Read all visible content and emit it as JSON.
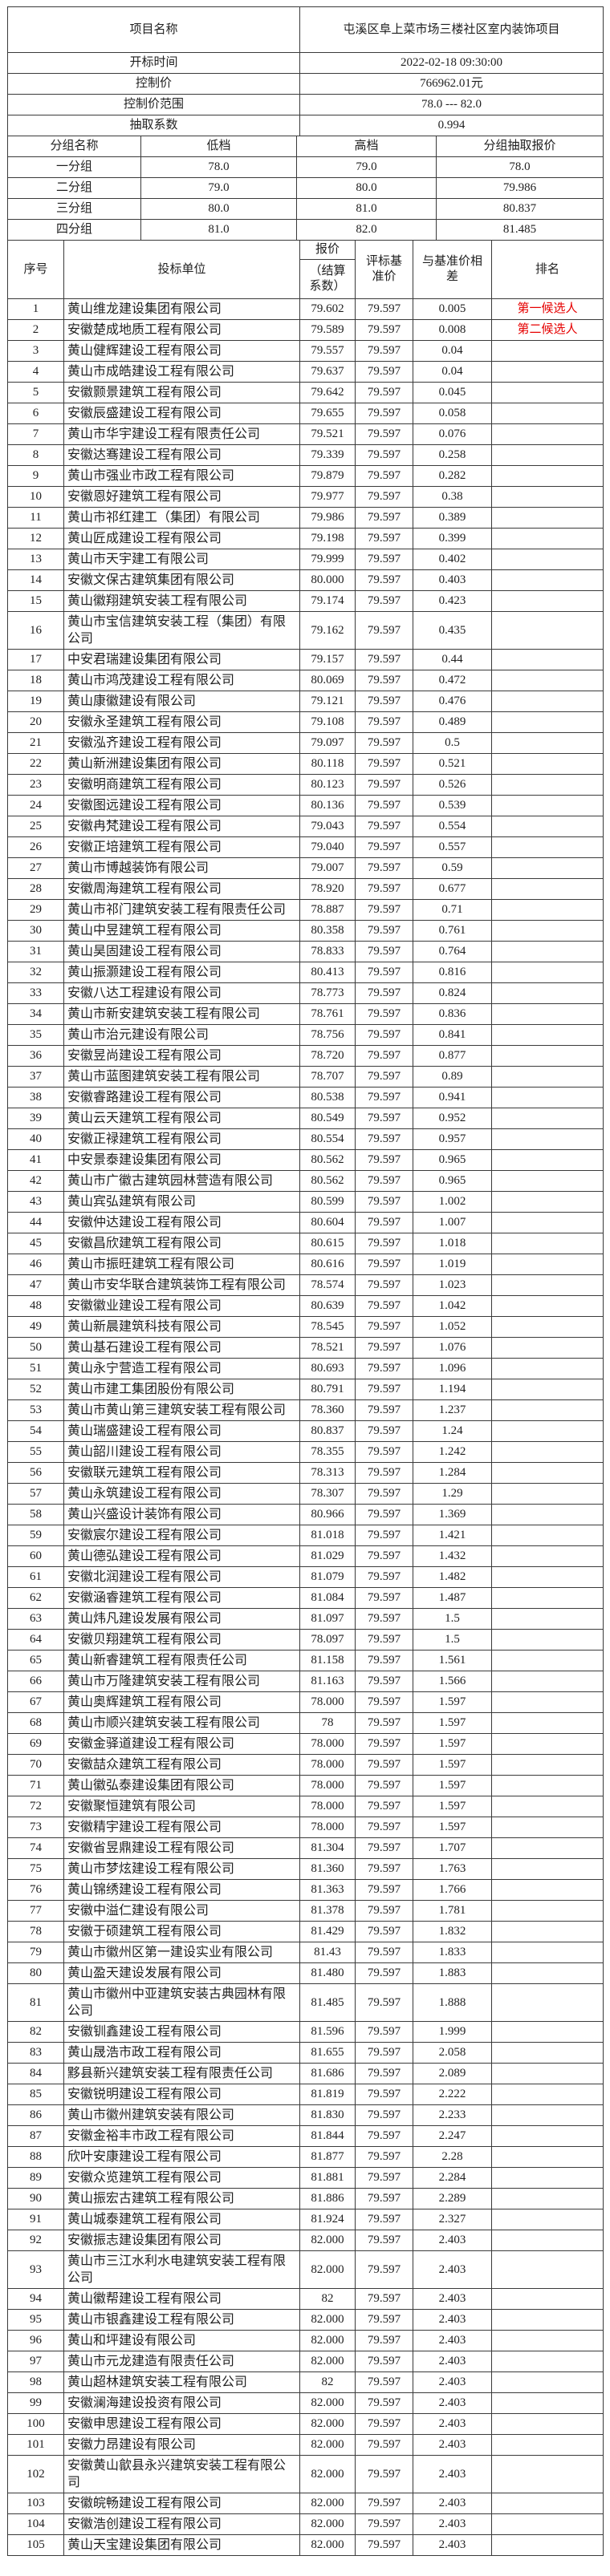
{
  "colors": {
    "background": "#ffffff",
    "border": "#3a3a3a",
    "text": "#1f1f1f",
    "candidate_red": "#e60000"
  },
  "info": {
    "rows": [
      {
        "label": "项目名称",
        "value": "屯溪区阜上菜市场三楼社区室内装饰项目"
      },
      {
        "label": "开标时间",
        "value": "2022-02-18 09:30:00"
      },
      {
        "label": "控制价",
        "value": "766962.01元"
      },
      {
        "label": "控制价范围",
        "value": "78.0 --- 82.0"
      },
      {
        "label": "抽取系数",
        "value": "0.994"
      }
    ]
  },
  "groups": {
    "headers": [
      "分组名称",
      "低档",
      "高档",
      "分组抽取报价"
    ],
    "rows": [
      [
        "一分组",
        "78.0",
        "79.0",
        "78.0"
      ],
      [
        "二分组",
        "79.0",
        "80.0",
        "79.986"
      ],
      [
        "三分组",
        "80.0",
        "81.0",
        "80.837"
      ],
      [
        "四分组",
        "81.0",
        "82.0",
        "81.485"
      ]
    ]
  },
  "bids": {
    "headers": {
      "no": "序号",
      "company": "投标单位",
      "price_line1": "报价",
      "price_line2": "（结算系数）",
      "base": "评标基准价",
      "diff": "与基准价相差",
      "rank": "排名"
    },
    "rows": [
      [
        "1",
        "黄山维龙建设集团有限公司",
        "79.602",
        "79.597",
        "0.005",
        "第一候选人"
      ],
      [
        "2",
        "安徽楚成地质工程有限公司",
        "79.589",
        "79.597",
        "0.008",
        "第二候选人"
      ],
      [
        "3",
        "黄山健辉建设工程有限公司",
        "79.557",
        "79.597",
        "0.04",
        ""
      ],
      [
        "4",
        "黄山市成皓建设工程有限公司",
        "79.637",
        "79.597",
        "0.04",
        ""
      ],
      [
        "5",
        "安徽颢景建筑工程有限公司",
        "79.642",
        "79.597",
        "0.045",
        ""
      ],
      [
        "6",
        "安徽辰盛建设工程有限公司",
        "79.655",
        "79.597",
        "0.058",
        ""
      ],
      [
        "7",
        "黄山市华宇建设工程有限责任公司",
        "79.521",
        "79.597",
        "0.076",
        ""
      ],
      [
        "8",
        "安徽达骞建设工程有限公司",
        "79.339",
        "79.597",
        "0.258",
        ""
      ],
      [
        "9",
        "黄山市强业市政工程有限公司",
        "79.879",
        "79.597",
        "0.282",
        ""
      ],
      [
        "10",
        "安徽恩好建筑工程有限公司",
        "79.977",
        "79.597",
        "0.38",
        ""
      ],
      [
        "11",
        "黄山市祁红建工（集团）有限公司",
        "79.986",
        "79.597",
        "0.389",
        ""
      ],
      [
        "12",
        "黄山匠成建设工程有限公司",
        "79.198",
        "79.597",
        "0.399",
        ""
      ],
      [
        "13",
        "黄山市天宇建工有限公司",
        "79.999",
        "79.597",
        "0.402",
        ""
      ],
      [
        "14",
        "安徽文保古建筑集团有限公司",
        "80.000",
        "79.597",
        "0.403",
        ""
      ],
      [
        "15",
        "黄山徽翔建筑安装工程有限公司",
        "79.174",
        "79.597",
        "0.423",
        ""
      ],
      [
        "16",
        "黄山市宝信建筑安装工程（集团）有限公司",
        "79.162",
        "79.597",
        "0.435",
        ""
      ],
      [
        "17",
        "中安君瑞建设集团有限公司",
        "79.157",
        "79.597",
        "0.44",
        ""
      ],
      [
        "18",
        "黄山市鸿茂建设工程有限公司",
        "80.069",
        "79.597",
        "0.472",
        ""
      ],
      [
        "19",
        "黄山康徽建设有限公司",
        "79.121",
        "79.597",
        "0.476",
        ""
      ],
      [
        "20",
        "安徽永圣建筑工程有限公司",
        "79.108",
        "79.597",
        "0.489",
        ""
      ],
      [
        "21",
        "安徽泓齐建设工程有限公司",
        "79.097",
        "79.597",
        "0.5",
        ""
      ],
      [
        "22",
        "黄山新洲建设集团有限公司",
        "80.118",
        "79.597",
        "0.521",
        ""
      ],
      [
        "23",
        "安徽明商建筑工程有限公司",
        "80.123",
        "79.597",
        "0.526",
        ""
      ],
      [
        "24",
        "安徽图远建设工程有限公司",
        "80.136",
        "79.597",
        "0.539",
        ""
      ],
      [
        "25",
        "安徽冉梵建设工程有限公司",
        "79.043",
        "79.597",
        "0.554",
        ""
      ],
      [
        "26",
        "安徽正培建筑工程有限公司",
        "79.040",
        "79.597",
        "0.557",
        ""
      ],
      [
        "27",
        "黄山市博越装饰有限公司",
        "79.007",
        "79.597",
        "0.59",
        ""
      ],
      [
        "28",
        "安徽周海建筑工程有限公司",
        "78.920",
        "79.597",
        "0.677",
        ""
      ],
      [
        "29",
        "黄山市祁门建筑安装工程有限责任公司",
        "78.887",
        "79.597",
        "0.71",
        ""
      ],
      [
        "30",
        "黄山中昱建筑工程有限公司",
        "80.358",
        "79.597",
        "0.761",
        ""
      ],
      [
        "31",
        "黄山昊固建设工程有限公司",
        "78.833",
        "79.597",
        "0.764",
        ""
      ],
      [
        "32",
        "黄山振灏建设工程有限公司",
        "80.413",
        "79.597",
        "0.816",
        ""
      ],
      [
        "33",
        "安徽八达工程建设有限公司",
        "78.773",
        "79.597",
        "0.824",
        ""
      ],
      [
        "34",
        "黄山市新安建筑安装工程有限公司",
        "78.761",
        "79.597",
        "0.836",
        ""
      ],
      [
        "35",
        "黄山市治元建设有限公司",
        "78.756",
        "79.597",
        "0.841",
        ""
      ],
      [
        "36",
        "安徽昱尚建设工程有限公司",
        "78.720",
        "79.597",
        "0.877",
        ""
      ],
      [
        "37",
        "黄山市蓝图建筑安装工程有限公司",
        "78.707",
        "79.597",
        "0.89",
        ""
      ],
      [
        "38",
        "安徽睿路建设工程有限公司",
        "80.538",
        "79.597",
        "0.941",
        ""
      ],
      [
        "39",
        "黄山云天建筑工程有限公司",
        "80.549",
        "79.597",
        "0.952",
        ""
      ],
      [
        "40",
        "安徽正禄建筑工程有限公司",
        "80.554",
        "79.597",
        "0.957",
        ""
      ],
      [
        "41",
        "中安景泰建设集团有限公司",
        "80.562",
        "79.597",
        "0.965",
        ""
      ],
      [
        "42",
        "黄山市广徽古建筑园林营造有限公司",
        "80.562",
        "79.597",
        "0.965",
        ""
      ],
      [
        "43",
        "黄山宾弘建筑有限公司",
        "80.599",
        "79.597",
        "1.002",
        ""
      ],
      [
        "44",
        "安徽仲达建设工程有限公司",
        "80.604",
        "79.597",
        "1.007",
        ""
      ],
      [
        "45",
        "安徽昌欣建筑工程有限公司",
        "80.615",
        "79.597",
        "1.018",
        ""
      ],
      [
        "46",
        "黄山市振旺建筑工程有限公司",
        "80.616",
        "79.597",
        "1.019",
        ""
      ],
      [
        "47",
        "黄山市安华联合建筑装饰工程有限公司",
        "78.574",
        "79.597",
        "1.023",
        ""
      ],
      [
        "48",
        "安徽徽业建设工程有限公司",
        "80.639",
        "79.597",
        "1.042",
        ""
      ],
      [
        "49",
        "黄山新晨建筑科技有限公司",
        "78.545",
        "79.597",
        "1.052",
        ""
      ],
      [
        "50",
        "黄山基石建设工程有限公司",
        "78.521",
        "79.597",
        "1.076",
        ""
      ],
      [
        "51",
        "黄山永宁营造工程有限公司",
        "80.693",
        "79.597",
        "1.096",
        ""
      ],
      [
        "52",
        "黄山市建工集团股份有限公司",
        "80.791",
        "79.597",
        "1.194",
        ""
      ],
      [
        "53",
        "黄山市黄山第三建筑安装工程有限公司",
        "78.360",
        "79.597",
        "1.237",
        ""
      ],
      [
        "54",
        "黄山瑞盛建设工程有限公司",
        "80.837",
        "79.597",
        "1.24",
        ""
      ],
      [
        "55",
        "黄山韶川建设工程有限公司",
        "78.355",
        "79.597",
        "1.242",
        ""
      ],
      [
        "56",
        "安徽联元建筑工程有限公司",
        "78.313",
        "79.597",
        "1.284",
        ""
      ],
      [
        "57",
        "黄山永筑建设工程有限公司",
        "78.307",
        "79.597",
        "1.29",
        ""
      ],
      [
        "58",
        "黄山兴盛设计装饰有限公司",
        "80.966",
        "79.597",
        "1.369",
        ""
      ],
      [
        "59",
        "安徽宸尔建设工程有限公司",
        "81.018",
        "79.597",
        "1.421",
        ""
      ],
      [
        "60",
        "黄山德弘建设工程有限公司",
        "81.029",
        "79.597",
        "1.432",
        ""
      ],
      [
        "61",
        "安徽北润建设工程有限公司",
        "81.079",
        "79.597",
        "1.482",
        ""
      ],
      [
        "62",
        "安徽涵睿建筑工程有限公司",
        "81.084",
        "79.597",
        "1.487",
        ""
      ],
      [
        "63",
        "黄山炜凡建设发展有限公司",
        "81.097",
        "79.597",
        "1.5",
        ""
      ],
      [
        "64",
        "安徽贝翔建筑工程有限公司",
        "78.097",
        "79.597",
        "1.5",
        ""
      ],
      [
        "65",
        "黄山新睿建筑工程有限责任公司",
        "81.158",
        "79.597",
        "1.561",
        ""
      ],
      [
        "66",
        "黄山市万隆建筑安装工程有限公司",
        "81.163",
        "79.597",
        "1.566",
        ""
      ],
      [
        "67",
        "黄山奥辉建筑工程有限公司",
        "78.000",
        "79.597",
        "1.597",
        ""
      ],
      [
        "68",
        "黄山市顺兴建筑安装工程有限公司",
        "78",
        "79.597",
        "1.597",
        ""
      ],
      [
        "69",
        "安徽金驿道建设工程有限公司",
        "78.000",
        "79.597",
        "1.597",
        ""
      ],
      [
        "70",
        "安徽喆众建筑工程有限公司",
        "78.000",
        "79.597",
        "1.597",
        ""
      ],
      [
        "71",
        "黄山徽弘泰建设集团有限公司",
        "78.000",
        "79.597",
        "1.597",
        ""
      ],
      [
        "72",
        "安徽聚恒建筑有限公司",
        "78.000",
        "79.597",
        "1.597",
        ""
      ],
      [
        "73",
        "安徽精宇建设工程有限公司",
        "78.000",
        "79.597",
        "1.597",
        ""
      ],
      [
        "74",
        "安徽省昱鼎建设工程有限公司",
        "81.304",
        "79.597",
        "1.707",
        ""
      ],
      [
        "75",
        "黄山市梦炫建设工程有限公司",
        "81.360",
        "79.597",
        "1.763",
        ""
      ],
      [
        "76",
        "黄山锦绣建设工程有限公司",
        "81.363",
        "79.597",
        "1.766",
        ""
      ],
      [
        "77",
        "安徽中溢仁建设有限公司",
        "81.378",
        "79.597",
        "1.781",
        ""
      ],
      [
        "78",
        "安徽于硕建筑工程有限公司",
        "81.429",
        "79.597",
        "1.832",
        ""
      ],
      [
        "79",
        "黄山市徽州区第一建设实业有限公司",
        "81.43",
        "79.597",
        "1.833",
        ""
      ],
      [
        "80",
        "黄山盈天建设发展有限公司",
        "81.480",
        "79.597",
        "1.883",
        ""
      ],
      [
        "81",
        "黄山市徽州中亚建筑安装古典园林有限公司",
        "81.485",
        "79.597",
        "1.888",
        ""
      ],
      [
        "82",
        "安徽钏鑫建设工程有限公司",
        "81.596",
        "79.597",
        "1.999",
        ""
      ],
      [
        "83",
        "黄山晟浩市政工程有限公司",
        "81.655",
        "79.597",
        "2.058",
        ""
      ],
      [
        "84",
        "黟县新兴建筑安装工程有限责任公司",
        "81.686",
        "79.597",
        "2.089",
        ""
      ],
      [
        "85",
        "安徽锐明建设工程有限公司",
        "81.819",
        "79.597",
        "2.222",
        ""
      ],
      [
        "86",
        "黄山市徽州建筑安装有限公司",
        "81.830",
        "79.597",
        "2.233",
        ""
      ],
      [
        "87",
        "安徽金裕丰市政工程有限公司",
        "81.844",
        "79.597",
        "2.247",
        ""
      ],
      [
        "88",
        "欣叶安康建设工程有限公司",
        "81.877",
        "79.597",
        "2.28",
        ""
      ],
      [
        "89",
        "安徽众览建筑工程有限公司",
        "81.881",
        "79.597",
        "2.284",
        ""
      ],
      [
        "90",
        "黄山振宏古建筑工程有限公司",
        "81.886",
        "79.597",
        "2.289",
        ""
      ],
      [
        "91",
        "黄山城泰建筑工程有限公司",
        "81.924",
        "79.597",
        "2.327",
        ""
      ],
      [
        "92",
        "安徽振志建设集团有限公司",
        "82.000",
        "79.597",
        "2.403",
        ""
      ],
      [
        "93",
        "黄山市三江水利水电建筑安装工程有限公司",
        "82.000",
        "79.597",
        "2.403",
        ""
      ],
      [
        "94",
        "黄山徽帮建设工程有限公司",
        "82",
        "79.597",
        "2.403",
        ""
      ],
      [
        "95",
        "黄山市银鑫建设工程有限公司",
        "82.000",
        "79.597",
        "2.403",
        ""
      ],
      [
        "96",
        "黄山和坪建设有限公司",
        "82.000",
        "79.597",
        "2.403",
        ""
      ],
      [
        "97",
        "黄山市元龙建造有限责任公司",
        "82.000",
        "79.597",
        "2.403",
        ""
      ],
      [
        "98",
        "黄山超林建筑安装工程有限公司",
        "82",
        "79.597",
        "2.403",
        ""
      ],
      [
        "99",
        "安徽澜海建设投资有限公司",
        "82.000",
        "79.597",
        "2.403",
        ""
      ],
      [
        "100",
        "安徽申思建设工程有限公司",
        "82.000",
        "79.597",
        "2.403",
        ""
      ],
      [
        "101",
        "安徽力昂建设有限公司",
        "82.000",
        "79.597",
        "2.403",
        ""
      ],
      [
        "102",
        "安徽黄山歙县永兴建筑安装工程有限公司",
        "82.000",
        "79.597",
        "2.403",
        ""
      ],
      [
        "103",
        "安徽皖畅建设工程有限公司",
        "82.000",
        "79.597",
        "2.403",
        ""
      ],
      [
        "104",
        "安徽浩创建设工程有限公司",
        "82.000",
        "79.597",
        "2.403",
        ""
      ],
      [
        "105",
        "黄山天宝建设集团有限公司",
        "82.000",
        "79.597",
        "2.403",
        ""
      ]
    ]
  }
}
